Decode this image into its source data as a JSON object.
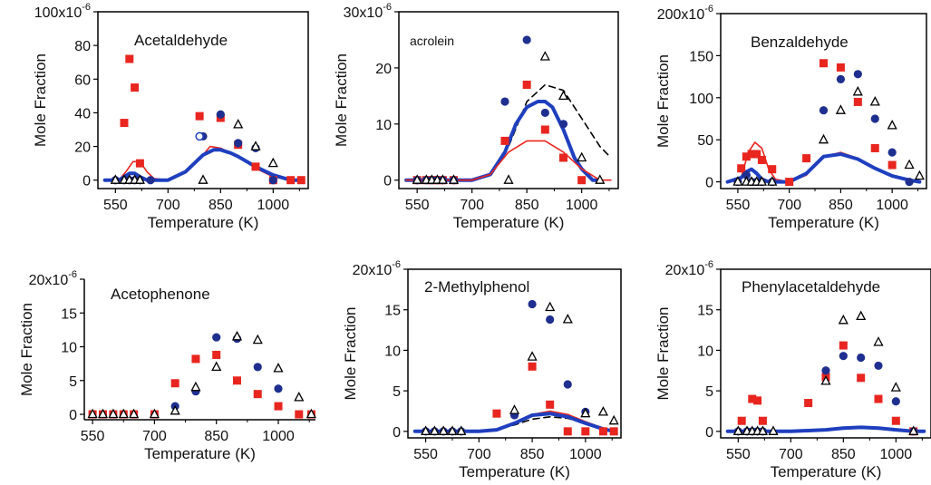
{
  "figure": {
    "colors": {
      "expt_a": "#e8251f",
      "expt_b": "#1f2f8f",
      "expt_c": "#000000",
      "model_red": "#e8251f",
      "model_blue": "#1f3fbf",
      "model_dash": "#000000",
      "open_circle": "#1f3fbf"
    }
  },
  "chart_data": [
    {
      "type": "scatter",
      "title": "Acetaldehyde",
      "xlabel": "Temperature (K)",
      "ylabel": "Mole Fraction",
      "xlim": [
        500,
        1100
      ],
      "ylim": [
        -5,
        100
      ],
      "y_exponent_label": "100x10",
      "y_exponent_sup": "-6",
      "x_ticks": [
        "550",
        "700",
        "850",
        "1000"
      ],
      "y_ticks": [
        "0",
        "20",
        "40",
        "60",
        "80"
      ],
      "series": [
        {
          "marker": "square",
          "x": [
            575,
            590,
            605,
            620,
            790,
            850,
            900,
            950,
            1000,
            1050,
            1080
          ],
          "y": [
            34,
            72,
            55,
            10,
            38,
            37,
            21,
            8,
            0,
            0,
            0
          ]
        },
        {
          "marker": "circle",
          "x": [
            550,
            575,
            590,
            605,
            620,
            650,
            800,
            850,
            900,
            950,
            1000
          ],
          "y": [
            0,
            0,
            0,
            0,
            0,
            0,
            26,
            39,
            22,
            19,
            0
          ]
        },
        {
          "marker": "open-circle",
          "x": [
            790
          ],
          "y": [
            26
          ]
        },
        {
          "marker": "triangle",
          "x": [
            550,
            575,
            590,
            605,
            620,
            800,
            900,
            950,
            1000
          ],
          "y": [
            0,
            0,
            0,
            0,
            0,
            0,
            33,
            20,
            10
          ]
        },
        {
          "marker": "line-red",
          "x": [
            520,
            560,
            580,
            600,
            620,
            640,
            660,
            700,
            750,
            800,
            820,
            850,
            880,
            900,
            950,
            1000,
            1050,
            1080
          ],
          "y": [
            0,
            0,
            5,
            11,
            11,
            5,
            1,
            0,
            5,
            15,
            20,
            19,
            16,
            14,
            7,
            2,
            0,
            0
          ]
        },
        {
          "marker": "line-blue",
          "x": [
            520,
            560,
            575,
            590,
            605,
            620,
            640,
            660,
            700,
            750,
            800,
            830,
            850,
            880,
            900,
            950,
            1000,
            1050,
            1080
          ],
          "y": [
            0,
            0,
            2,
            4,
            4,
            2,
            0,
            0,
            0,
            5,
            15,
            18,
            18,
            16,
            14,
            8,
            3,
            0,
            0
          ]
        }
      ]
    },
    {
      "type": "scatter",
      "title": "acrolein",
      "xlabel": "Temperature (K)",
      "ylabel": "Mole Fraction",
      "xlim": [
        500,
        1100
      ],
      "ylim": [
        -1.5,
        30
      ],
      "y_exponent_label": "30x10",
      "y_exponent_sup": "-6",
      "x_ticks": [
        "550",
        "700",
        "850",
        "1000"
      ],
      "y_ticks": [
        "0",
        "10",
        "20"
      ],
      "series": [
        {
          "marker": "square",
          "x": [
            550,
            575,
            590,
            605,
            620,
            650,
            790,
            850,
            900,
            950,
            1000
          ],
          "y": [
            0,
            0,
            0,
            0,
            0,
            0,
            7,
            17,
            9,
            4,
            0
          ]
        },
        {
          "marker": "circle",
          "x": [
            550,
            575,
            590,
            605,
            620,
            650,
            790,
            850,
            900,
            950
          ],
          "y": [
            0,
            0,
            0,
            0,
            0,
            0,
            14,
            25,
            12,
            10
          ]
        },
        {
          "marker": "triangle",
          "x": [
            550,
            575,
            590,
            605,
            620,
            650,
            800,
            900,
            950,
            1000,
            1050
          ],
          "y": [
            0,
            0,
            0,
            0,
            0,
            0,
            0,
            22,
            15,
            4,
            0
          ]
        },
        {
          "marker": "dash",
          "x": [
            520,
            700,
            750,
            800,
            850,
            900,
            950,
            1000,
            1050,
            1080
          ],
          "y": [
            0,
            0,
            1,
            6,
            14,
            17,
            16,
            11,
            6,
            4
          ]
        },
        {
          "marker": "line-blue",
          "x": [
            520,
            700,
            750,
            790,
            820,
            850,
            880,
            900,
            920,
            950,
            980,
            1000,
            1030,
            1050
          ],
          "y": [
            0,
            0,
            1,
            5,
            10,
            13,
            14,
            14,
            13,
            9,
            4,
            2,
            0,
            0
          ]
        },
        {
          "marker": "line-red",
          "x": [
            520,
            700,
            750,
            800,
            850,
            900,
            950,
            1000,
            1050,
            1080
          ],
          "y": [
            0,
            0,
            1,
            5,
            7,
            7,
            5,
            2,
            0,
            0
          ]
        }
      ]
    },
    {
      "type": "scatter",
      "title": "Benzaldehyde",
      "xlabel": "Temperature (K)",
      "ylabel": "Mole Fraction",
      "xlim": [
        500,
        1100
      ],
      "ylim": [
        -8,
        200
      ],
      "y_exponent_label": "200x10",
      "y_exponent_sup": "-6",
      "x_ticks": [
        "550",
        "700",
        "850",
        "1000"
      ],
      "y_ticks": [
        "0",
        "50",
        "100",
        "150"
      ],
      "series": [
        {
          "marker": "square",
          "x": [
            560,
            575,
            590,
            605,
            620,
            650,
            700,
            750,
            800,
            850,
            900,
            950,
            1000
          ],
          "y": [
            16,
            30,
            33,
            33,
            26,
            15,
            0,
            28,
            141,
            136,
            95,
            40,
            20
          ]
        },
        {
          "marker": "circle",
          "x": [
            550,
            575,
            590,
            605,
            620,
            650,
            800,
            850,
            900,
            950,
            1000,
            1050
          ],
          "y": [
            0,
            8,
            0,
            0,
            0,
            0,
            85,
            122,
            128,
            75,
            35,
            0
          ]
        },
        {
          "marker": "triangle",
          "x": [
            550,
            575,
            590,
            605,
            620,
            650,
            800,
            850,
            900,
            950,
            1000,
            1050,
            1080
          ],
          "y": [
            0,
            0,
            0,
            0,
            0,
            0,
            50,
            85,
            107,
            95,
            67,
            20,
            7
          ]
        },
        {
          "marker": "line-red",
          "x": [
            520,
            560,
            580,
            600,
            620,
            640,
            660,
            700,
            750,
            800,
            850,
            900,
            950,
            1000,
            1050,
            1080
          ],
          "y": [
            0,
            5,
            35,
            47,
            40,
            15,
            3,
            0,
            8,
            30,
            35,
            28,
            17,
            8,
            2,
            0
          ]
        },
        {
          "marker": "line-blue",
          "x": [
            520,
            560,
            575,
            590,
            605,
            620,
            640,
            660,
            700,
            750,
            800,
            850,
            900,
            950,
            1000,
            1050,
            1080
          ],
          "y": [
            0,
            5,
            12,
            15,
            10,
            3,
            0,
            0,
            0,
            10,
            30,
            33,
            27,
            16,
            7,
            2,
            0
          ]
        }
      ]
    },
    {
      "type": "scatter",
      "title": "Acetophenone",
      "xlabel": "Temperature (K)",
      "ylabel": "Mole Fraction",
      "xlim": [
        530,
        1090
      ],
      "ylim": [
        -0.8,
        20
      ],
      "y_exponent_label": "20x10",
      "y_exponent_sup": "-6",
      "x_ticks": [
        "550",
        "700",
        "850",
        "1000"
      ],
      "y_ticks": [
        "0",
        "5",
        "10",
        "15"
      ],
      "series": [
        {
          "marker": "square",
          "x": [
            550,
            575,
            600,
            625,
            650,
            700,
            750,
            800,
            850,
            900,
            950,
            1000,
            1050,
            1080
          ],
          "y": [
            0,
            0,
            0,
            0,
            0,
            0,
            4.6,
            8.2,
            8.8,
            5,
            3,
            1.2,
            0,
            0
          ]
        },
        {
          "marker": "circle",
          "x": [
            750,
            800,
            850,
            900,
            950,
            1000
          ],
          "y": [
            1.2,
            3.4,
            11.4,
            11.2,
            7,
            3.8
          ]
        },
        {
          "marker": "triangle",
          "x": [
            550,
            575,
            600,
            625,
            650,
            700,
            750,
            800,
            850,
            900,
            950,
            1000,
            1050,
            1080
          ],
          "y": [
            0,
            0,
            0,
            0,
            0,
            0,
            0.5,
            4,
            7,
            11.5,
            11,
            6.8,
            2.5,
            0
          ]
        }
      ]
    },
    {
      "type": "scatter",
      "title": "2-Methylphenol",
      "xlabel": "Temperature (K)",
      "ylabel": "Mole Fraction",
      "xlim": [
        500,
        1100
      ],
      "ylim": [
        -0.8,
        20
      ],
      "y_exponent_label": "20x10",
      "y_exponent_sup": "-6",
      "x_ticks": [
        "550",
        "700",
        "850",
        "1000"
      ],
      "y_ticks": [
        "0",
        "5",
        "10",
        "15"
      ],
      "series": [
        {
          "marker": "square",
          "x": [
            750,
            850,
            900,
            950,
            1000,
            1050,
            1080
          ],
          "y": [
            2.2,
            8,
            3.3,
            0,
            0,
            0,
            0
          ]
        },
        {
          "marker": "circle",
          "x": [
            550,
            575,
            600,
            625,
            650,
            800,
            850,
            900,
            950,
            1000
          ],
          "y": [
            0,
            0,
            0,
            0,
            0,
            2,
            15.7,
            13.8,
            5.8,
            2.4
          ]
        },
        {
          "marker": "triangle",
          "x": [
            550,
            575,
            600,
            625,
            650,
            800,
            850,
            900,
            950,
            1000,
            1050,
            1080
          ],
          "y": [
            0,
            0,
            0,
            0,
            0,
            2.6,
            9.2,
            15.3,
            13.8,
            2.2,
            2.4,
            1.3
          ]
        },
        {
          "marker": "dash",
          "x": [
            520,
            700,
            750,
            800,
            850,
            900,
            950,
            1000,
            1050,
            1080
          ],
          "y": [
            0,
            0,
            0.2,
            0.8,
            1.5,
            1.8,
            1.6,
            1,
            0.3,
            0
          ]
        },
        {
          "marker": "line-red",
          "x": [
            520,
            700,
            750,
            800,
            850,
            900,
            950,
            1000,
            1050,
            1080
          ],
          "y": [
            0,
            0,
            0.2,
            1,
            2.1,
            2.5,
            2.1,
            1.2,
            0.4,
            0
          ]
        },
        {
          "marker": "line-blue",
          "x": [
            520,
            700,
            750,
            800,
            850,
            900,
            950,
            1000,
            1050,
            1080
          ],
          "y": [
            0,
            0,
            0.2,
            1,
            2,
            2.2,
            1.8,
            1,
            0.3,
            0
          ]
        }
      ]
    },
    {
      "type": "scatter",
      "title": "Phenylacetaldehyde",
      "xlabel": "Temperature (K)",
      "ylabel": "Mole Fraction",
      "xlim": [
        500,
        1100
      ],
      "ylim": [
        -0.8,
        20
      ],
      "y_exponent_label": "20x10",
      "y_exponent_sup": "-6",
      "x_ticks": [
        "550",
        "700",
        "850",
        "1000"
      ],
      "y_ticks": [
        "0",
        "5",
        "10",
        "15"
      ],
      "series": [
        {
          "marker": "square",
          "x": [
            560,
            590,
            605,
            620,
            750,
            800,
            850,
            900,
            950,
            1000,
            1050
          ],
          "y": [
            1.3,
            4,
            3.8,
            1.3,
            3.5,
            6.7,
            10.6,
            6.6,
            4,
            1.3,
            0
          ]
        },
        {
          "marker": "circle",
          "x": [
            550,
            575,
            590,
            605,
            620,
            800,
            850,
            900,
            950,
            1000,
            1050
          ],
          "y": [
            0,
            0,
            0,
            0,
            0,
            7.5,
            9.3,
            9.1,
            8.1,
            3.7,
            0
          ]
        },
        {
          "marker": "triangle",
          "x": [
            550,
            575,
            590,
            605,
            620,
            650,
            800,
            850,
            900,
            950,
            1000,
            1050
          ],
          "y": [
            0,
            0,
            0,
            0,
            0,
            0,
            6.2,
            13.7,
            14.2,
            11,
            5.4,
            0
          ]
        },
        {
          "marker": "line-red",
          "x": [
            520,
            700,
            800,
            850,
            900,
            950,
            1000,
            1050,
            1080
          ],
          "y": [
            0,
            0,
            0.2,
            0.4,
            0.5,
            0.4,
            0.2,
            0,
            0
          ]
        },
        {
          "marker": "line-blue",
          "x": [
            520,
            700,
            800,
            850,
            900,
            950,
            1000,
            1050,
            1080
          ],
          "y": [
            0,
            0,
            0.2,
            0.4,
            0.5,
            0.4,
            0.2,
            0,
            0
          ]
        }
      ]
    }
  ]
}
